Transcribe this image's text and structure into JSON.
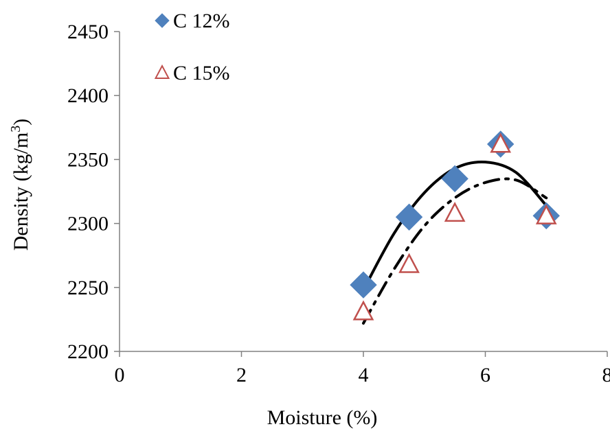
{
  "chart_data": {
    "type": "scatter",
    "xlabel": "Moisture (%)",
    "ylabel": "Density (kg/m3)",
    "ylabel_parts": {
      "main": "Density (kg/m",
      "superscript": "3",
      "end": ")"
    },
    "xlim": [
      0,
      8
    ],
    "ylim": [
      2200,
      2450
    ],
    "x_ticks": [
      0,
      2,
      4,
      6,
      8
    ],
    "y_ticks": [
      2200,
      2250,
      2300,
      2350,
      2400,
      2450
    ],
    "x_tick_labels": [
      "0",
      "2",
      "4",
      "6",
      "8"
    ],
    "y_tick_labels": [
      "2200",
      "2250",
      "2300",
      "2350",
      "2400",
      "2450"
    ],
    "grid": false,
    "legend_position": "top-left",
    "series": [
      {
        "name": "C 12%",
        "marker": "diamond",
        "color": "#4F81BD",
        "points": [
          [
            4.0,
            2252
          ],
          [
            4.75,
            2305
          ],
          [
            5.5,
            2335
          ],
          [
            6.25,
            2362
          ],
          [
            7.0,
            2306
          ]
        ],
        "trendline": {
          "style": "solid",
          "color": "#000000",
          "x_range": [
            4.0,
            7.0
          ],
          "points": [
            [
              4.0,
              2248
            ],
            [
              4.5,
              2292
            ],
            [
              5.0,
              2324
            ],
            [
              5.5,
              2343
            ],
            [
              6.0,
              2348
            ],
            [
              6.5,
              2340
            ],
            [
              7.0,
              2314
            ]
          ]
        }
      },
      {
        "name": "C 15%",
        "marker": "triangle-open",
        "color": "#C0504D",
        "points": [
          [
            4.0,
            2231
          ],
          [
            4.75,
            2268
          ],
          [
            5.5,
            2308
          ],
          [
            6.25,
            2362
          ],
          [
            7.0,
            2306
          ]
        ],
        "trendline": {
          "style": "dash-dot",
          "color": "#000000",
          "x_range": [
            4.0,
            7.0
          ],
          "points": [
            [
              4.0,
              2222
            ],
            [
              4.5,
              2264
            ],
            [
              5.0,
              2298
            ],
            [
              5.5,
              2320
            ],
            [
              6.0,
              2332
            ],
            [
              6.5,
              2334
            ],
            [
              7.0,
              2320
            ]
          ]
        }
      }
    ]
  }
}
